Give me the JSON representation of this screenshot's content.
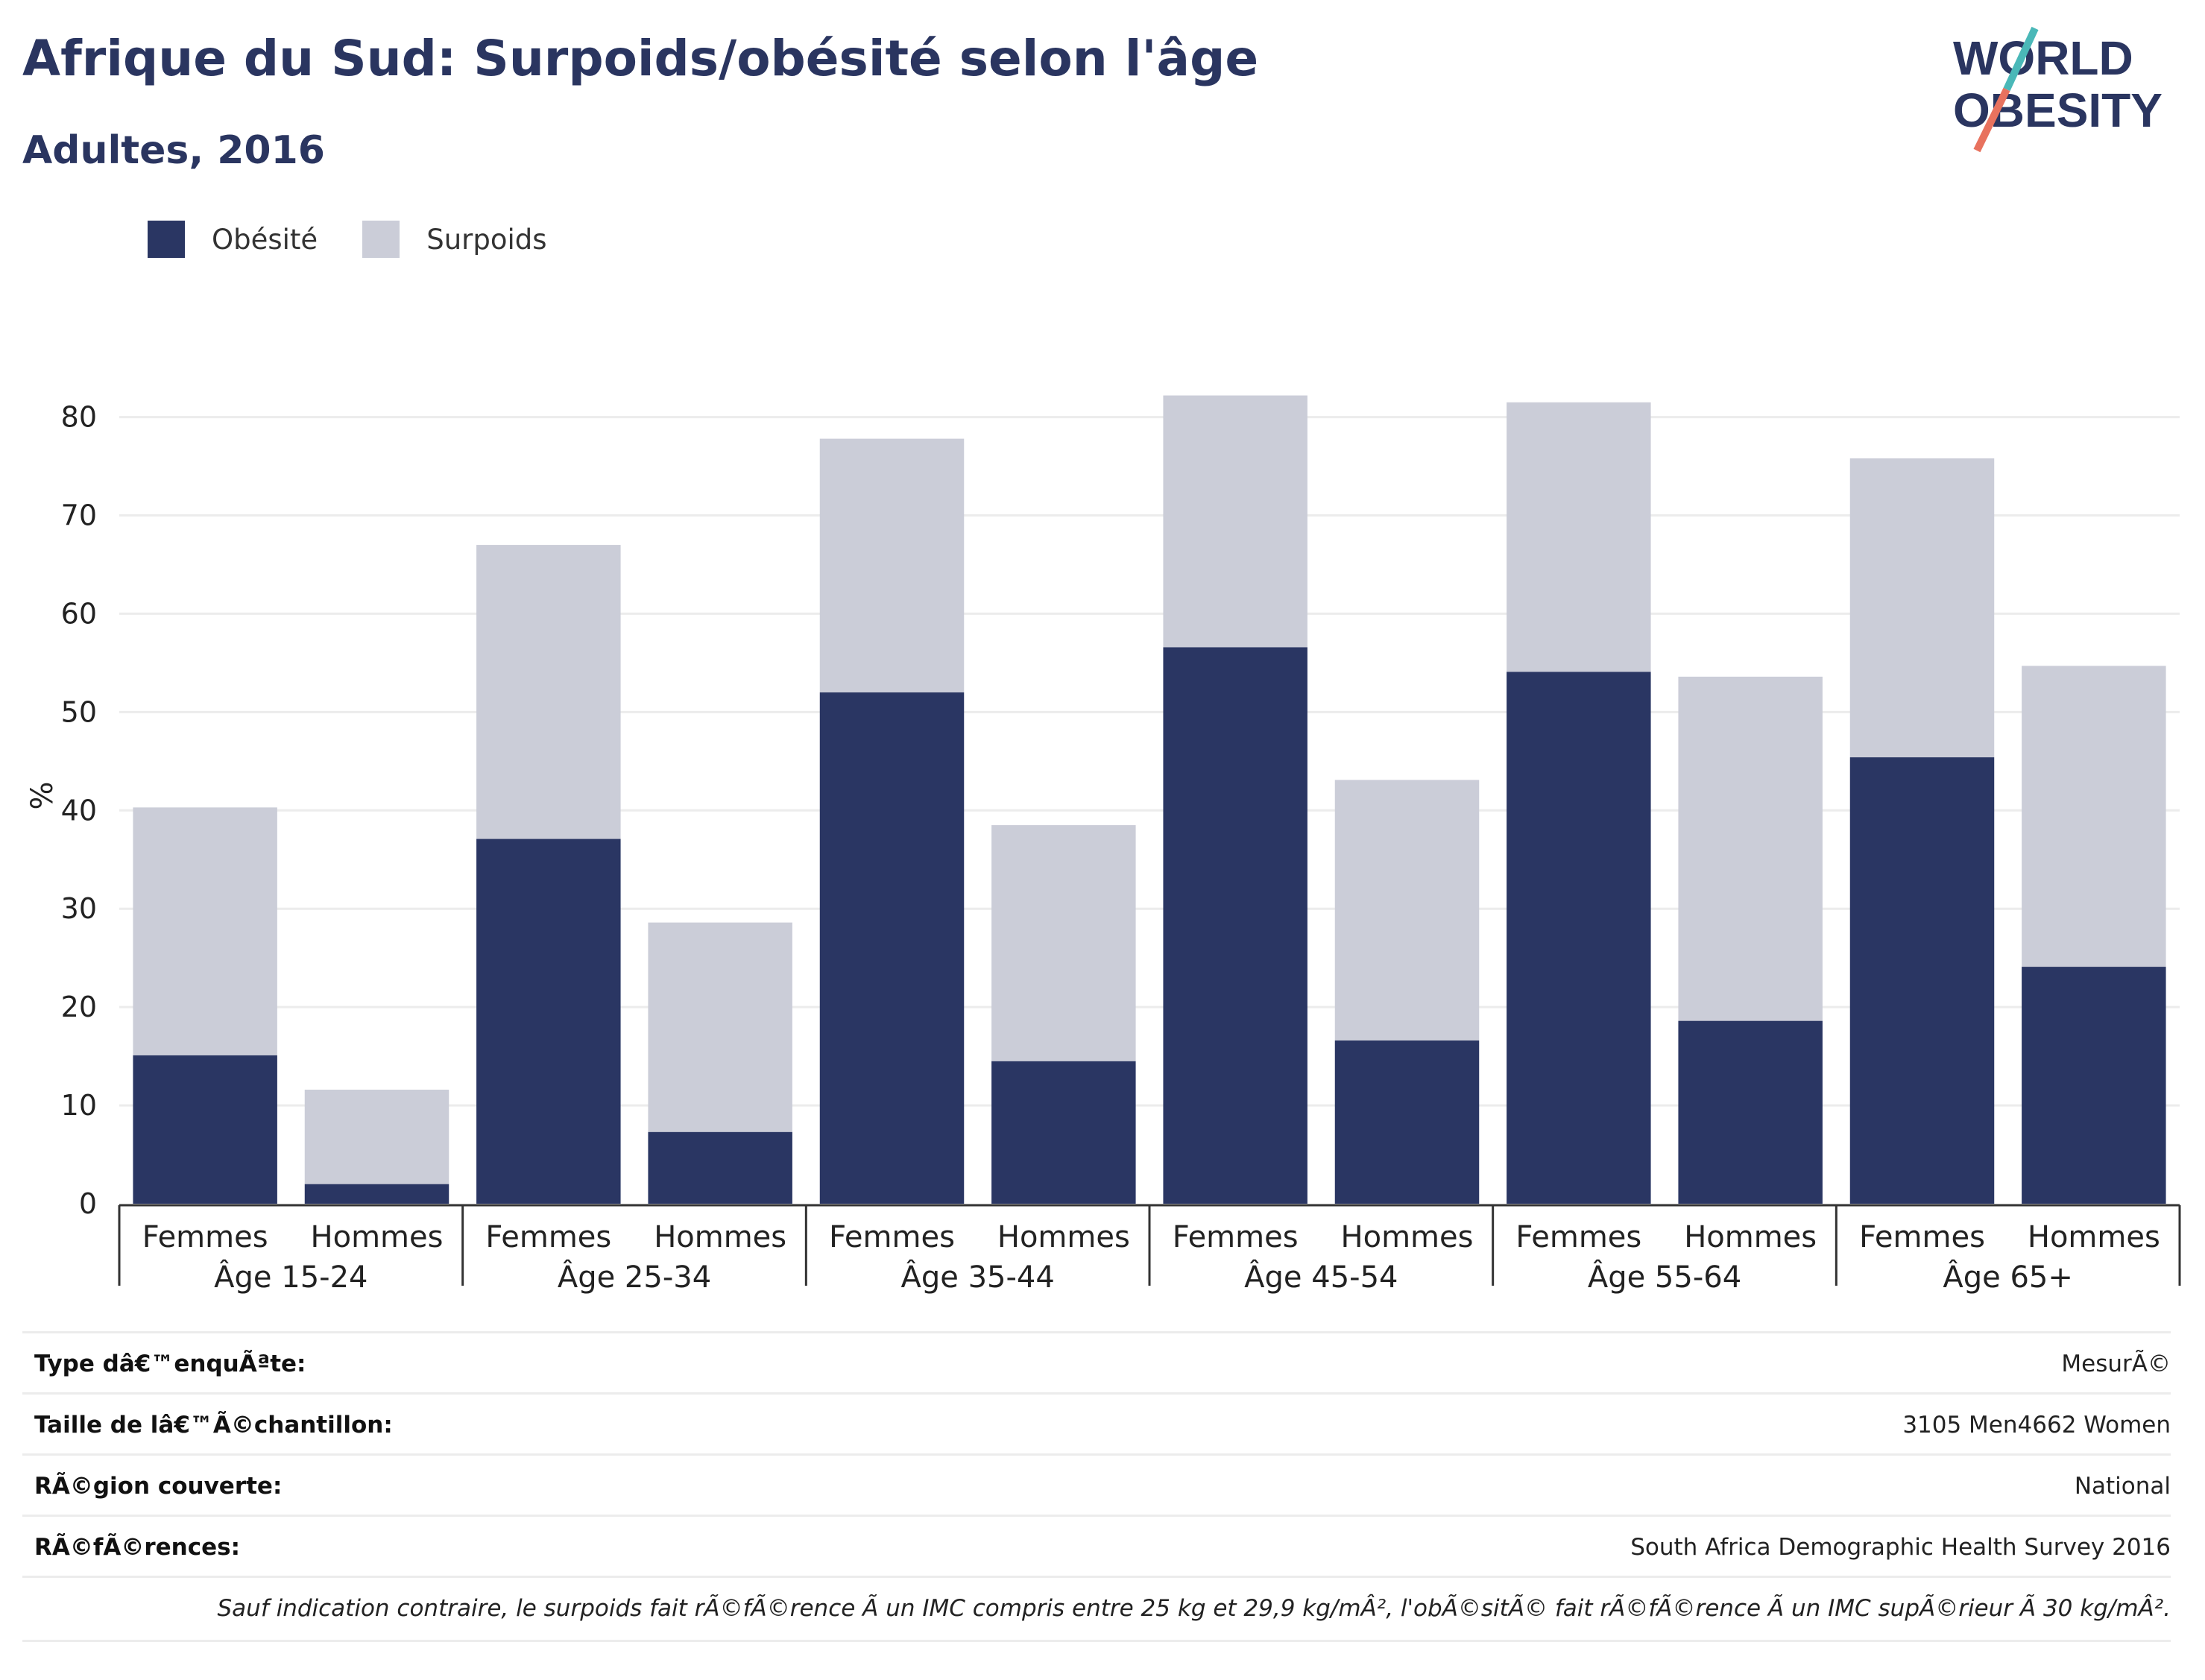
{
  "header": {
    "title": "Afrique du Sud: Surpoids/obésité selon l'âge",
    "subtitle": "Adultes, 2016"
  },
  "logo": {
    "line1": "WORLD",
    "line2": "OBESITY",
    "colors": {
      "text": "#2a3560",
      "slash_top": "#4ab8b8",
      "slash_bottom": "#e8725e"
    }
  },
  "legend": {
    "items": [
      {
        "label": "Obésité",
        "color": "#2a3663"
      },
      {
        "label": "Surpoids",
        "color": "#cbcdd8"
      }
    ],
    "placement": "top-left"
  },
  "chart_data": {
    "type": "bar",
    "stacked": true,
    "ylabel": "%",
    "ylim": [
      0,
      83
    ],
    "yticks": [
      0,
      10,
      20,
      30,
      40,
      50,
      60,
      70,
      80
    ],
    "grid": true,
    "groups": [
      "Âge 15-24",
      "Âge 25-34",
      "Âge 35-44",
      "Âge 45-54",
      "Âge 55-64",
      "Âge 65+"
    ],
    "subcategories": [
      "Femmes",
      "Hommes"
    ],
    "series": [
      {
        "name": "Obésité",
        "color": "#2a3663",
        "values": [
          15.1,
          2.0,
          37.1,
          7.3,
          52.0,
          14.5,
          56.6,
          16.6,
          54.1,
          18.6,
          45.4,
          24.1
        ]
      },
      {
        "name": "Surpoids",
        "color": "#cbcdd8",
        "values": [
          25.2,
          9.6,
          29.9,
          21.3,
          25.8,
          24.0,
          25.6,
          26.5,
          27.4,
          35.0,
          30.4,
          30.6
        ]
      }
    ],
    "totals": [
      40.3,
      11.6,
      67.0,
      28.6,
      77.8,
      38.5,
      82.2,
      43.1,
      81.5,
      53.6,
      75.8,
      54.7
    ]
  },
  "info": {
    "rows": [
      {
        "label": "Type dâ€™enquÃªte:",
        "value": "MesurÃ©"
      },
      {
        "label": "Taille de lâ€™Ã©chantillon:",
        "value": "3105 Men4662 Women"
      },
      {
        "label": "RÃ©gion couverte:",
        "value": "National"
      },
      {
        "label": "RÃ©fÃ©rences:",
        "value": "South Africa Demographic Health Survey 2016"
      }
    ],
    "footnote": "Sauf indication contraire, le surpoids fait rÃ©fÃ©rence Ã  un IMC compris entre 25 kg et 29,9 kg/mÂ², l'obÃ©sitÃ© fait rÃ©fÃ©rence Ã  un IMC supÃ©rieur Ã  30 kg/mÂ²."
  }
}
